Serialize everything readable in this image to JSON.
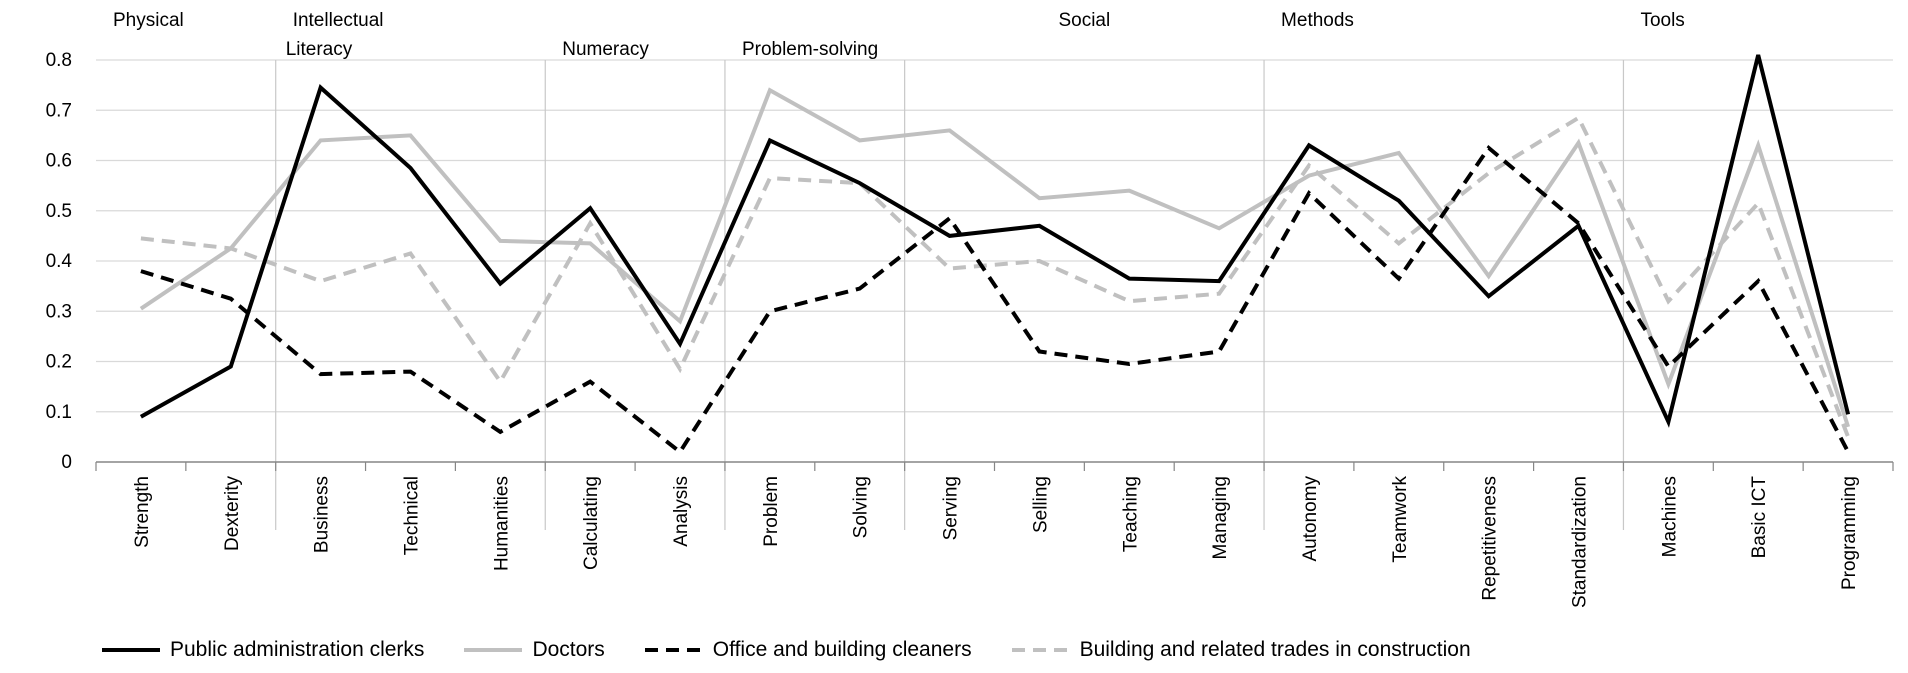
{
  "chart_data": {
    "type": "line",
    "title": "",
    "xlabel": "",
    "ylabel": "",
    "ylim": [
      0,
      0.8
    ],
    "yticks": [
      "0",
      "0.1",
      "0.2",
      "0.3",
      "0.4",
      "0.5",
      "0.6",
      "0.7",
      "0.8"
    ],
    "grid": true,
    "legend_position": "bottom",
    "categories": [
      "Strength",
      "Dexterity",
      "Business",
      "Technical",
      "Humanities",
      "Calculating",
      "Analysis",
      "Problem",
      "Solving",
      "Serving",
      "Selling",
      "Teaching",
      "Managing",
      "Autonomy",
      "Teamwork",
      "Repetitiveness",
      "Standardization",
      "Machines",
      "Basic ICT",
      "Programming"
    ],
    "groups": [
      {
        "label": "Physical",
        "start": 0,
        "end": 1
      },
      {
        "label": "Intellectual",
        "start": 2,
        "end": 8
      },
      {
        "label": "Literacy",
        "start": 2,
        "end": 4
      },
      {
        "label": "Numeracy",
        "start": 5,
        "end": 6
      },
      {
        "label": "Problem-solving",
        "start": 7,
        "end": 8
      },
      {
        "label": "Social",
        "start": 9,
        "end": 12
      },
      {
        "label": "Methods",
        "start": 13,
        "end": 16
      },
      {
        "label": "Tools",
        "start": 17,
        "end": 19
      }
    ],
    "series": [
      {
        "name": "Public administration clerks",
        "color": "#000000",
        "style": "solid",
        "values": [
          0.09,
          0.19,
          0.745,
          0.585,
          0.355,
          0.505,
          0.235,
          0.64,
          0.555,
          0.45,
          0.47,
          0.365,
          0.36,
          0.63,
          0.52,
          0.33,
          0.47,
          0.08,
          0.81,
          0.095
        ]
      },
      {
        "name": "Doctors",
        "color": "#c0c0c0",
        "style": "solid",
        "values": [
          0.305,
          0.425,
          0.64,
          0.65,
          0.44,
          0.435,
          0.28,
          0.74,
          0.64,
          0.66,
          0.525,
          0.54,
          0.465,
          0.57,
          0.615,
          0.37,
          0.635,
          0.155,
          0.63,
          0.07
        ]
      },
      {
        "name": "Office and building cleaners",
        "color": "#000000",
        "style": "dashed",
        "values": [
          0.38,
          0.325,
          0.175,
          0.18,
          0.06,
          0.16,
          0.02,
          0.3,
          0.345,
          0.485,
          0.22,
          0.195,
          0.22,
          0.535,
          0.365,
          0.625,
          0.475,
          0.19,
          0.36,
          0.02
        ]
      },
      {
        "name": "Building and related trades in construction",
        "color": "#c0c0c0",
        "style": "dashed",
        "values": [
          0.445,
          0.425,
          0.36,
          0.415,
          0.16,
          0.475,
          0.185,
          0.565,
          0.555,
          0.385,
          0.4,
          0.32,
          0.335,
          0.59,
          0.435,
          0.575,
          0.685,
          0.32,
          0.515,
          0.05
        ]
      }
    ]
  }
}
